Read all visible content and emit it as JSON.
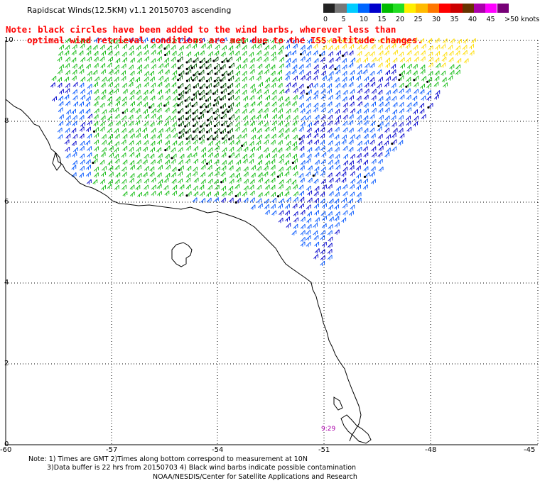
{
  "title": "Rapidscat Winds(12.5KM) v1.1 20150703 ascending",
  "note": {
    "line1": "Note: black circles have been added to the wind barbs, wherever less than",
    "line2": "optimal wind retrieval conditions are met due to the ISS altitude changes."
  },
  "legend": {
    "labels": [
      "0",
      "5",
      "10",
      "15",
      "20",
      "25",
      "30",
      "35",
      "40",
      "45",
      ">50 knots"
    ],
    "colors": [
      "#222222",
      "#777777",
      "#00ccff",
      "#0066ff",
      "#0000cc",
      "#00bb00",
      "#22dd22",
      "#ffee00",
      "#ffbb00",
      "#ff7700",
      "#ff0000",
      "#cc0000",
      "#663300",
      "#aa00aa",
      "#ff00ff",
      "#770077"
    ]
  },
  "axes": {
    "x_labels": [
      "-60",
      "-57",
      "-54",
      "-51",
      "-48",
      "-45"
    ],
    "y_labels": [
      "10",
      "8",
      "6",
      "4",
      "2",
      "0"
    ]
  },
  "time_label": "9:29",
  "footer": {
    "line1": "Note: 1) Times are GMT 2)Times along bottom correspond to measurement at 10N",
    "line2": "3)Data buffer is 22 hrs from 20150703 4) Black wind barbs indicate possible contamination",
    "line3": "NOAA/NESDIS/Center for Satellite Applications and Research"
  }
}
